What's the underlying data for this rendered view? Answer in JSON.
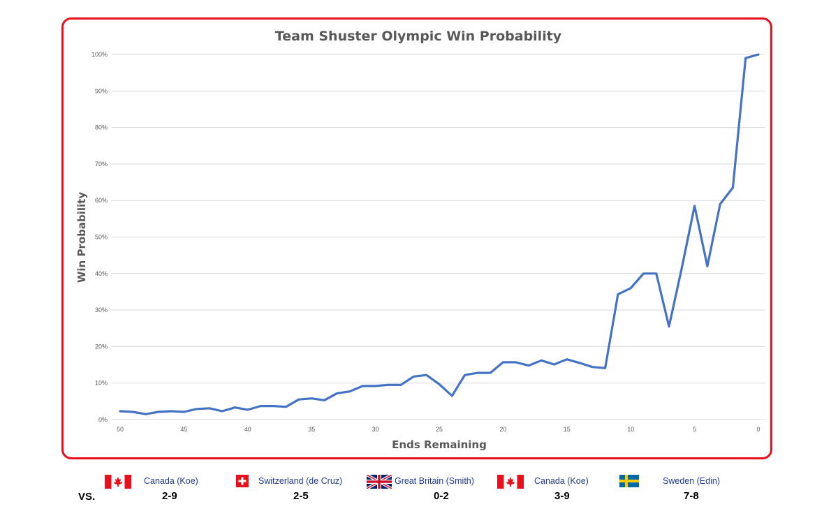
{
  "chart_data": {
    "type": "line",
    "title": "Team Shuster Olympic Win Probability",
    "xlabel": "Ends Remaining",
    "ylabel": "Win Probability",
    "xlim": [
      50,
      0
    ],
    "ylim": [
      0,
      1
    ],
    "x_ticks": [
      "50",
      "45",
      "40",
      "35",
      "30",
      "25",
      "20",
      "15",
      "10",
      "5",
      "0"
    ],
    "y_ticks": [
      "0%",
      "10%",
      "20%",
      "30%",
      "40%",
      "50%",
      "60%",
      "70%",
      "80%",
      "90%",
      "100%"
    ],
    "grid": true,
    "series": [
      {
        "color": "#4472c4",
        "x": [
          50,
          49,
          48,
          47,
          46,
          45,
          44,
          43,
          42,
          41,
          40,
          39,
          38,
          37,
          36,
          35,
          34,
          33,
          32,
          31,
          30,
          29,
          28,
          27,
          26,
          25,
          24,
          23,
          22,
          21,
          20,
          19,
          18,
          17,
          16,
          15,
          14,
          13,
          12,
          11,
          10,
          9,
          8,
          7,
          6,
          5,
          4,
          3,
          2,
          1,
          0
        ],
        "values": [
          0.023,
          0.021,
          0.015,
          0.021,
          0.023,
          0.021,
          0.029,
          0.031,
          0.023,
          0.033,
          0.027,
          0.037,
          0.037,
          0.035,
          0.055,
          0.058,
          0.053,
          0.072,
          0.077,
          0.092,
          0.092,
          0.095,
          0.095,
          0.118,
          0.122,
          0.097,
          0.065,
          0.122,
          0.128,
          0.128,
          0.157,
          0.157,
          0.148,
          0.162,
          0.151,
          0.165,
          0.155,
          0.144,
          0.141,
          0.343,
          0.36,
          0.4,
          0.4,
          0.255,
          0.415,
          0.585,
          0.42,
          0.59,
          0.635,
          0.99,
          1.0
        ]
      }
    ]
  },
  "opponents_label": "VS.",
  "opponents": [
    {
      "flag": "canada-flag-icon",
      "name": "Canada (Koe)",
      "score": "2-9"
    },
    {
      "flag": "switzerland-flag-icon",
      "name": "Switzerland (de Cruz)",
      "score": "2-5"
    },
    {
      "flag": "great-britain-flag-icon",
      "name": "Great Britain (Smith)",
      "score": "0-2"
    },
    {
      "flag": "canada-flag-icon",
      "name": "Canada (Koe)",
      "score": "3-9"
    },
    {
      "flag": "sweden-flag-icon",
      "name": "Sweden (Edin)",
      "score": "7-8"
    }
  ]
}
